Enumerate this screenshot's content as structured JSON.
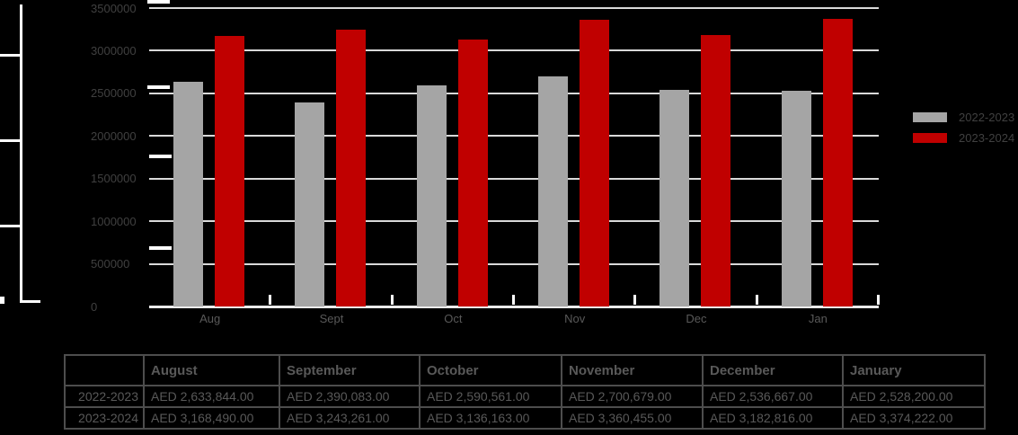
{
  "chart_data": {
    "type": "bar",
    "categories": [
      "Aug",
      "Sept",
      "Oct",
      "Nov",
      "Dec",
      "Jan"
    ],
    "series": [
      {
        "name": "2022-2023",
        "color": "#a5a5a5",
        "values": [
          2633844,
          2390083,
          2590561,
          2700679,
          2536667,
          2528200
        ]
      },
      {
        "name": "2023-2024",
        "color": "#c00000",
        "values": [
          3168490,
          3243261,
          3136163,
          3360455,
          3182816,
          3374222
        ]
      }
    ],
    "title": "",
    "xlabel": "",
    "ylabel": "",
    "ylim": [
      0,
      3500000
    ],
    "ytick_step": 500000,
    "ytick_labels": [
      "3500000",
      "3000000",
      "2500000",
      "2000000",
      "1500000",
      "1000000",
      "500000",
      "0"
    ],
    "grid": true,
    "legend_position": "right"
  },
  "legend": {
    "items": [
      {
        "label": "2022-2023",
        "color": "#a5a5a5"
      },
      {
        "label": "2023-2024",
        "color": "#c00000"
      }
    ]
  },
  "table": {
    "headers": [
      "",
      "August",
      "September",
      "October",
      "November",
      "December",
      "January"
    ],
    "rows": [
      {
        "label": "2022-2023",
        "values": [
          "AED 2,633,844.00",
          "AED 2,390,083.00",
          "AED 2,590,561.00",
          "AED 2,700,679.00",
          "AED 2,536,667.00",
          "AED 2,528,200.00"
        ]
      },
      {
        "label": "2023-2024",
        "values": [
          "AED 3,168,490.00",
          "AED 3,243,261.00",
          "AED 3,136,163.00",
          "AED 3,360,455.00",
          "AED 3,182,816.00",
          "AED 3,374,222.00"
        ]
      }
    ]
  },
  "colors": {
    "background": "#000000",
    "bar_gray": "#a5a5a5",
    "bar_red": "#c00000",
    "gridline": "#d9d9d9",
    "axis_line": "#ebebeb",
    "tick_white": "#ffffff",
    "label_dark": "#404040",
    "label_medium": "#595959",
    "table_border": "#4d4d4d"
  }
}
